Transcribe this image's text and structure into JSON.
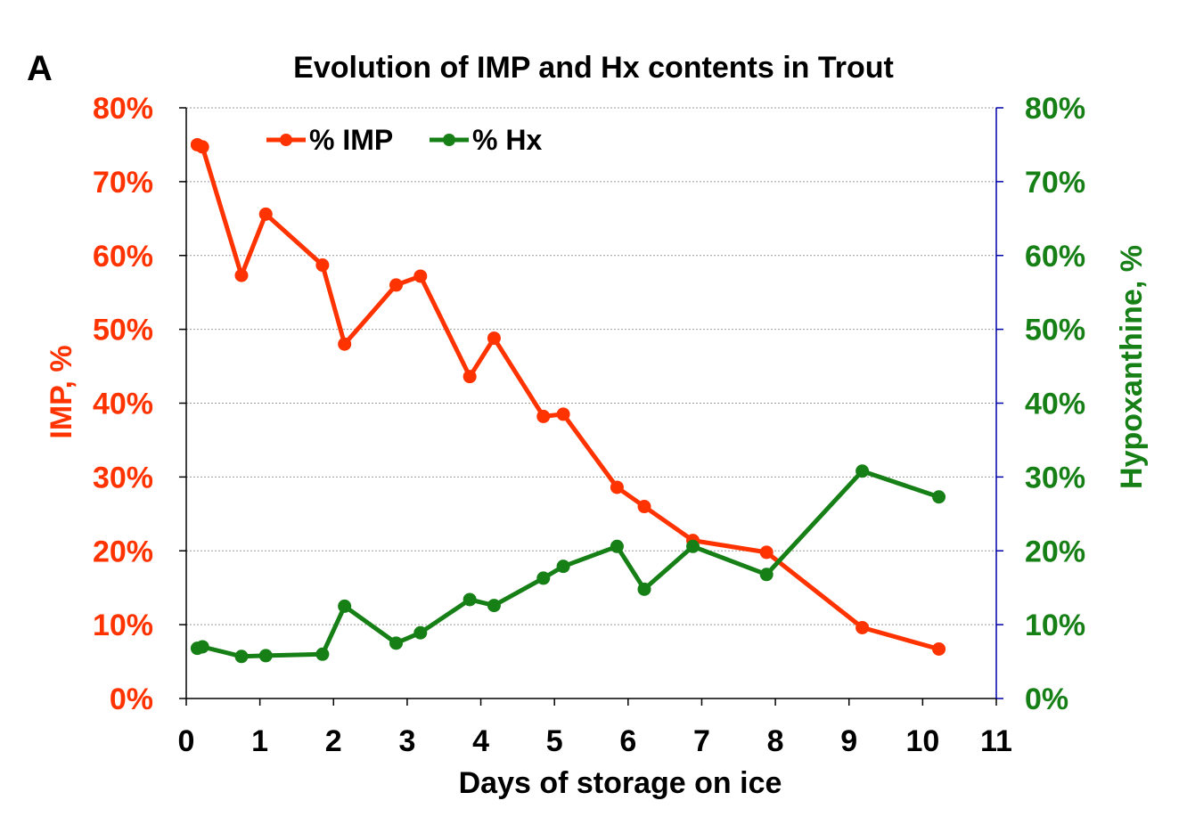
{
  "chart_data": {
    "type": "line",
    "panel_label": "A",
    "title": "Evolution of IMP and Hx contents in Trout",
    "xlabel": "Days of storage on ice",
    "ylabel_left": "IMP, %",
    "ylabel_right": "Hypoxanthine, %",
    "xlim": [
      0,
      11
    ],
    "ylim": [
      0,
      80
    ],
    "x_ticks": [
      "0",
      "1",
      "2",
      "3",
      "4",
      "5",
      "6",
      "7",
      "8",
      "9",
      "10",
      "11"
    ],
    "y_ticks_left": [
      "0%",
      "10%",
      "20%",
      "30%",
      "40%",
      "50%",
      "60%",
      "70%",
      "80%"
    ],
    "y_ticks_right": [
      "0%",
      "10%",
      "20%",
      "30%",
      "40%",
      "50%",
      "60%",
      "70%",
      "80%"
    ],
    "grid": "horizontal dotted",
    "legend_position": "top-left",
    "colors": {
      "imp": "#ff3300",
      "hx": "#168016",
      "right_axis": "#0000aa"
    },
    "series": [
      {
        "name": "% IMP",
        "axis": "left",
        "x": [
          0.15,
          0.22,
          0.75,
          1.08,
          1.85,
          2.15,
          2.85,
          3.18,
          3.85,
          4.18,
          4.85,
          5.12,
          5.85,
          6.22,
          6.88,
          7.88,
          9.18,
          10.22
        ],
        "y": [
          75.0,
          74.7,
          57.3,
          65.6,
          58.7,
          48.0,
          56.0,
          57.2,
          43.6,
          48.8,
          38.2,
          38.5,
          28.6,
          26.0,
          21.4,
          19.8,
          9.6,
          6.7
        ]
      },
      {
        "name": "% Hx",
        "axis": "right",
        "x": [
          0.15,
          0.22,
          0.75,
          1.08,
          1.85,
          2.15,
          2.85,
          3.18,
          3.85,
          4.18,
          4.85,
          5.12,
          5.85,
          6.22,
          6.88,
          7.88,
          9.18,
          10.22
        ],
        "y": [
          6.8,
          7.0,
          5.7,
          5.8,
          6.0,
          12.5,
          7.5,
          8.9,
          13.4,
          12.6,
          16.3,
          17.9,
          20.6,
          14.8,
          20.6,
          16.8,
          30.8,
          27.3
        ]
      }
    ]
  }
}
